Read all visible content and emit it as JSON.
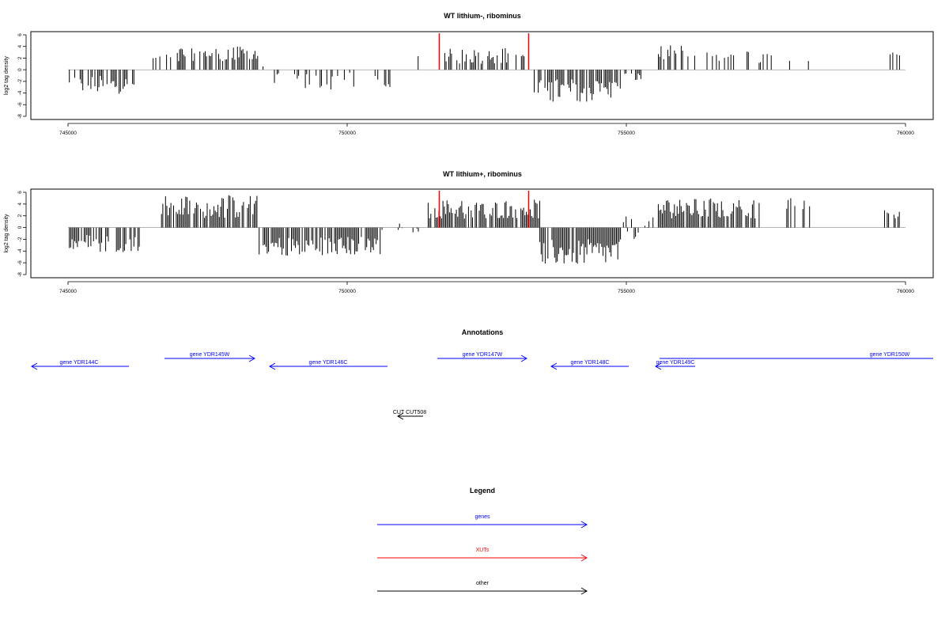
{
  "chart_data": [
    {
      "type": "bar",
      "title": "WT lithium-, ribominus",
      "ylabel": "log2 tag density",
      "xlim": [
        745000,
        760000
      ],
      "ylim": [
        -8,
        6
      ],
      "x_ticks": [
        "745000",
        "750000",
        "755000",
        "760000"
      ],
      "y_ticks": [
        "6",
        "4",
        "2",
        "0",
        "-2",
        "-4",
        "-6",
        "-8"
      ],
      "grid": false,
      "baseline": {
        "x": [
          745000,
          760000
        ],
        "y": 0
      },
      "marker_lines": [
        751650,
        753250
      ],
      "marker_color": "#ff0000",
      "segments": [
        {
          "x0": 745000,
          "x1": 746200,
          "lo": -4.2,
          "hi": -1.0,
          "density": 0.55
        },
        {
          "x0": 746500,
          "x1": 747000,
          "lo": 1.0,
          "hi": 3.0,
          "density": 0.35
        },
        {
          "x0": 747000,
          "x1": 748400,
          "lo": 1.5,
          "hi": 4.0,
          "density": 0.6
        },
        {
          "x0": 748300,
          "x1": 748500,
          "lo": 0.5,
          "hi": 2.0,
          "density": 0.4
        },
        {
          "x0": 748600,
          "x1": 750200,
          "lo": -3.5,
          "hi": -0.5,
          "density": 0.3
        },
        {
          "x0": 750500,
          "x1": 750900,
          "lo": -3.2,
          "hi": -1.0,
          "density": 0.5
        },
        {
          "x0": 751150,
          "x1": 751350,
          "lo": 0.5,
          "hi": 2.8,
          "density": 0.3
        },
        {
          "x0": 751700,
          "x1": 753200,
          "lo": 1.0,
          "hi": 3.8,
          "density": 0.45
        },
        {
          "x0": 753350,
          "x1": 754900,
          "lo": -5.5,
          "hi": -1.5,
          "density": 0.7
        },
        {
          "x0": 754900,
          "x1": 755300,
          "lo": -2.0,
          "hi": -0.5,
          "density": 0.4
        },
        {
          "x0": 755550,
          "x1": 756300,
          "lo": 1.5,
          "hi": 4.2,
          "density": 0.55
        },
        {
          "x0": 756300,
          "x1": 756800,
          "lo": 1.0,
          "hi": 3.0,
          "density": 0.3
        },
        {
          "x0": 756800,
          "x1": 757600,
          "lo": 1.0,
          "hi": 3.3,
          "density": 0.3
        },
        {
          "x0": 757900,
          "x1": 758300,
          "lo": 1.5,
          "hi": 2.8,
          "density": 0.3
        },
        {
          "x0": 759700,
          "x1": 759900,
          "lo": 2.0,
          "hi": 3.2,
          "density": 0.2
        }
      ]
    },
    {
      "type": "bar",
      "title": "WT lithium+, ribominus",
      "ylabel": "log2 tag density",
      "xlim": [
        745000,
        760000
      ],
      "ylim": [
        -8,
        6
      ],
      "x_ticks": [
        "745000",
        "750000",
        "755000",
        "760000"
      ],
      "y_ticks": [
        "6",
        "4",
        "2",
        "0",
        "-2",
        "-4",
        "-6",
        "-8"
      ],
      "grid": false,
      "baseline": {
        "x": [
          745000,
          760000
        ],
        "y": 0
      },
      "marker_lines": [
        751650,
        753250
      ],
      "marker_color": "#ff0000",
      "segments": [
        {
          "x0": 745000,
          "x1": 746300,
          "lo": -4.2,
          "hi": -1.0,
          "density": 0.6
        },
        {
          "x0": 746650,
          "x1": 748400,
          "lo": 1.5,
          "hi": 5.5,
          "density": 0.8
        },
        {
          "x0": 748400,
          "x1": 750600,
          "lo": -4.8,
          "hi": -1.5,
          "density": 0.75
        },
        {
          "x0": 750600,
          "x1": 751300,
          "lo": -1.5,
          "hi": 1.0,
          "density": 0.2
        },
        {
          "x0": 751450,
          "x1": 753450,
          "lo": 1.5,
          "hi": 4.8,
          "density": 0.85
        },
        {
          "x0": 753450,
          "x1": 754900,
          "lo": -6.5,
          "hi": -2.0,
          "density": 0.95
        },
        {
          "x0": 754900,
          "x1": 755500,
          "lo": -2.0,
          "hi": 2.5,
          "density": 0.4
        },
        {
          "x0": 755500,
          "x1": 757400,
          "lo": 1.5,
          "hi": 5.0,
          "density": 0.8
        },
        {
          "x0": 757800,
          "x1": 758300,
          "lo": 2.5,
          "hi": 5.0,
          "density": 0.4
        },
        {
          "x0": 759600,
          "x1": 759900,
          "lo": 1.5,
          "hi": 3.0,
          "density": 0.3
        }
      ]
    }
  ],
  "annotations": {
    "title": "Annotations",
    "genes": [
      {
        "label": "gene YDR144C",
        "strand": "-",
        "color": "#0000ff"
      },
      {
        "label": "gene YDR145W",
        "strand": "+",
        "color": "#0000ff"
      },
      {
        "label": "gene YDR146C",
        "strand": "-",
        "color": "#0000ff"
      },
      {
        "label": "gene YDR147W",
        "strand": "+",
        "color": "#0000ff"
      },
      {
        "label": "gene YDR148C",
        "strand": "-",
        "color": "#0000ff"
      },
      {
        "label": "gene YDR149C",
        "strand": "-",
        "color": "#0000ff"
      },
      {
        "label": "gene YDR150W",
        "strand": "+",
        "color": "#0000ff"
      },
      {
        "label": "CUT CUT508",
        "strand": "-",
        "color": "#000000"
      }
    ]
  },
  "legend": {
    "title": "Legend",
    "items": [
      {
        "label": "genes",
        "color": "#0000ff"
      },
      {
        "label": "XUTs",
        "color": "#ff0000"
      },
      {
        "label": "other",
        "color": "#000000"
      }
    ]
  }
}
